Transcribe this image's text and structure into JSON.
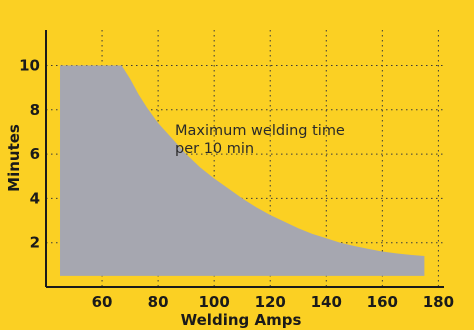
{
  "chart_data": {
    "type": "area",
    "xlabel": "Welding Amps",
    "ylabel": "Minutes",
    "annotation": [
      "Maximum welding time",
      "per 10 min"
    ],
    "x_ticks": [
      60,
      80,
      100,
      120,
      140,
      160,
      180
    ],
    "y_ticks": [
      2,
      4,
      6,
      8,
      10
    ],
    "xlim": [
      40,
      182
    ],
    "ylim": [
      0,
      11.6
    ],
    "grid": true,
    "series": [
      {
        "x": [
          45,
          67,
          70,
          73,
          76,
          80,
          85,
          90,
          95,
          100,
          105,
          110,
          115,
          120,
          125,
          130,
          135,
          140,
          145,
          150,
          155,
          160,
          165,
          170,
          175
        ],
        "y": [
          10,
          10,
          9.4,
          8.7,
          8.1,
          7.4,
          6.7,
          6.0,
          5.4,
          4.9,
          4.45,
          4.0,
          3.6,
          3.25,
          2.95,
          2.65,
          2.4,
          2.2,
          2.0,
          1.85,
          1.72,
          1.6,
          1.52,
          1.45,
          1.4
        ]
      }
    ],
    "baseline": 0.5,
    "colors": {
      "background": "#fbd023",
      "fill": "#a6a7b0",
      "axis": "#1a1a1a",
      "text": "#1a1a1a"
    }
  }
}
